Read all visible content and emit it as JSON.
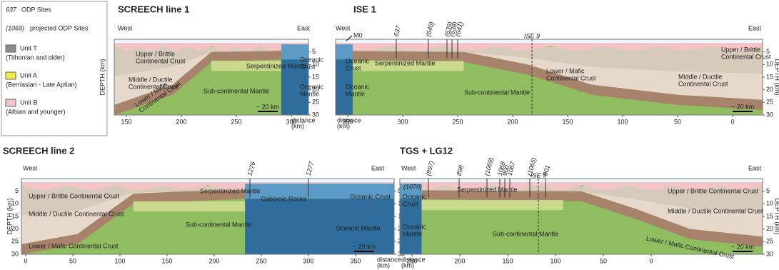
{
  "legend": {
    "sites": {
      "number": "637",
      "label": "ODP Sites"
    },
    "projected": {
      "number": "(1069)",
      "label": "projected ODP Sites"
    },
    "units": [
      {
        "name": "Unit T",
        "age": "(Tithonian and older)",
        "color": "#8c8c8c"
      },
      {
        "name": "Unit A",
        "age": "(Berriasian - Late Aptian)",
        "color": "#f2ea4a"
      },
      {
        "name": "Unit B",
        "age": "(Albian and younger)",
        "color": "#f4c3c6"
      }
    ]
  },
  "panels": [
    {
      "title": "SCREECH line 1",
      "west": "West",
      "east": "East",
      "depth_label": "DEPTH (km)",
      "depth_ticks": [
        5,
        10,
        15,
        20,
        25,
        30
      ],
      "distance_ticks": [
        150,
        200,
        250,
        300
      ],
      "distance_label": [
        "distance",
        "(km)"
      ],
      "scale": "~ 20 km",
      "labels": [
        [
          "Upper / Brittle",
          "Continental Crust"
        ],
        [
          "Middle / Ductile",
          "Continental Crust"
        ],
        [
          "Lower / Mafic",
          "Continental Crust"
        ],
        [
          "Serpentinized Mantle"
        ],
        [
          "Sub-continental Mantle"
        ],
        [
          "Oceanic",
          "Crust"
        ],
        [
          "Oceanic",
          "Mantle"
        ]
      ],
      "sites": []
    },
    {
      "title": "ISE 1",
      "west": "West",
      "east": "East",
      "depth_label": "DEPTH (km)",
      "depth_ticks": [
        5,
        10,
        15,
        20,
        25,
        30
      ],
      "distance_ticks": [
        350,
        300,
        250,
        200,
        150,
        100,
        50,
        0
      ],
      "distance_label": [
        "distance",
        "(km)"
      ],
      "scale": "~ 20 km",
      "labels": [
        [
          "Oceanic",
          "Crust"
        ],
        [
          "Oceanic",
          "Mantle"
        ],
        [
          "Serpentinized Mantle"
        ],
        [
          "Sub-continental Mantle"
        ],
        [
          "Lower / Mafic",
          "Continental Crust"
        ],
        [
          "Middle / Ductile",
          "Continental Crust"
        ],
        [
          "Upper / Brittle",
          "Continental Crust"
        ]
      ],
      "sites": [
        "M0",
        "637",
        "(640)",
        "(639)",
        "(638)",
        "(641)",
        "ISE 9"
      ]
    },
    {
      "title": "SCREECH line 2",
      "west": "West",
      "east": "East",
      "depth_label": "DEPTH (km)",
      "depth_ticks": [
        5,
        10,
        15,
        20,
        25,
        30
      ],
      "distance_ticks": [
        0,
        50,
        100,
        150,
        200,
        250,
        300,
        350
      ],
      "distance_label": [
        "distance",
        "(km)"
      ],
      "scale": "~ 20 km",
      "labels": [
        [
          "Upper / Brittle Continental Crust"
        ],
        [
          "Middle / Ductile Continental Crust"
        ],
        [
          "Lower / Mafic Continental Crust"
        ],
        [
          "Serpentinized Mantle"
        ],
        [
          "Sub-continental Mantle"
        ],
        [
          "Gabbroic Rocks"
        ],
        [
          "Oceanic Crust"
        ],
        [
          "Oceanic Mantle"
        ]
      ],
      "sites": [
        "1276",
        "1277"
      ]
    },
    {
      "title": "TGS + LG12",
      "west": "West",
      "east": "East",
      "depth_label": "DEPTH (km)",
      "depth_ticks": [
        5,
        10,
        15,
        20,
        25,
        30
      ],
      "distance_ticks": [
        250,
        200,
        150,
        100,
        50,
        0
      ],
      "distance_label": [
        "distance",
        "(km)"
      ],
      "scale": "~ 20 km",
      "labels": [
        [
          "Oceanic",
          "Crust"
        ],
        [
          "Oceanic",
          "Mantle"
        ],
        [
          "Serpentinized Mantle"
        ],
        [
          "Sub-continental Mantle"
        ],
        [
          "Upper / Brittle Continental Crust"
        ],
        [
          "Middle / Ductile Continental Crust"
        ],
        [
          "Lower / Mafic Continental Crust"
        ]
      ],
      "sites": [
        "(1070)",
        "(897)",
        "898",
        "(1069)",
        "1068",
        "900",
        "1067",
        "(1065)",
        "ISE 9",
        "901"
      ]
    }
  ]
}
